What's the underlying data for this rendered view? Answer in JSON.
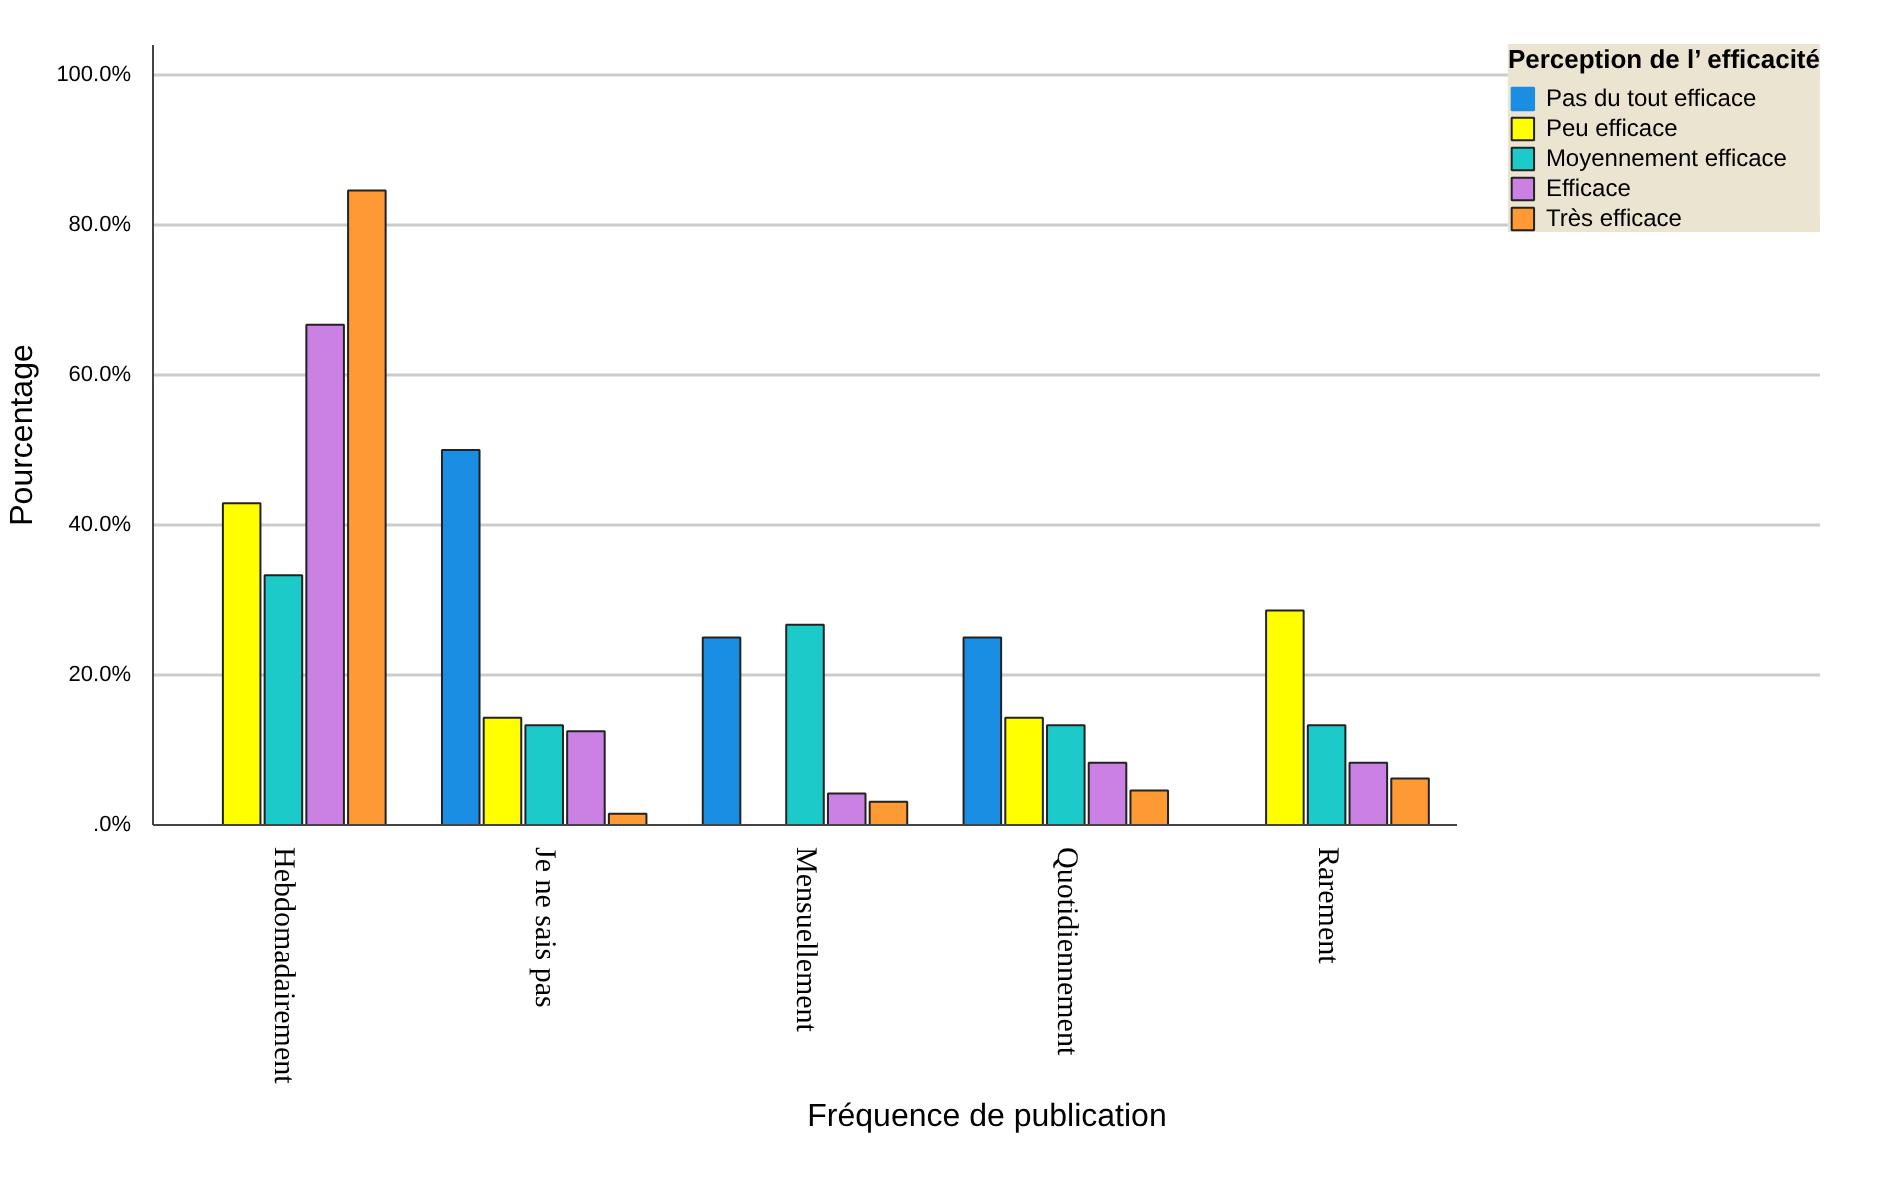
{
  "chart_data": {
    "type": "bar",
    "xlabel": "Fréquence de publication",
    "ylabel": "Pourcentage",
    "legend_title": "Perception de l’ efficacité",
    "categories": [
      "Hebdomadairement",
      "Je ne sais pas",
      "Mensuellement",
      "Quotidiennement",
      "Rarement"
    ],
    "series": [
      {
        "name": "Pas du tout efficace",
        "color": "#1a8ee3",
        "values": [
          0,
          50,
          25,
          25,
          0
        ]
      },
      {
        "name": "Peu efficace",
        "color": "#ffff00",
        "values": [
          42.9,
          14.3,
          0,
          14.3,
          28.6
        ]
      },
      {
        "name": "Moyennement efficace",
        "color": "#1ccbc9",
        "values": [
          33.3,
          13.3,
          26.7,
          13.3,
          13.3
        ]
      },
      {
        "name": "Efficace",
        "color": "#ca81e3",
        "values": [
          66.7,
          12.5,
          4.2,
          8.3,
          8.3
        ]
      },
      {
        "name": "Très efficace",
        "color": "#fd9a33",
        "values": [
          84.6,
          1.5,
          3.1,
          4.6,
          6.2
        ]
      }
    ],
    "ylim": [
      0,
      104
    ],
    "yticks": [
      {
        "value": 0,
        "label": ".0%"
      },
      {
        "value": 20,
        "label": "20.0%"
      },
      {
        "value": 40,
        "label": "40.0%"
      },
      {
        "value": 60,
        "label": "60.0%"
      },
      {
        "value": 80,
        "label": "80.0%"
      },
      {
        "value": 100,
        "label": "100.0%"
      }
    ],
    "grid": "y",
    "legend": "top right"
  }
}
